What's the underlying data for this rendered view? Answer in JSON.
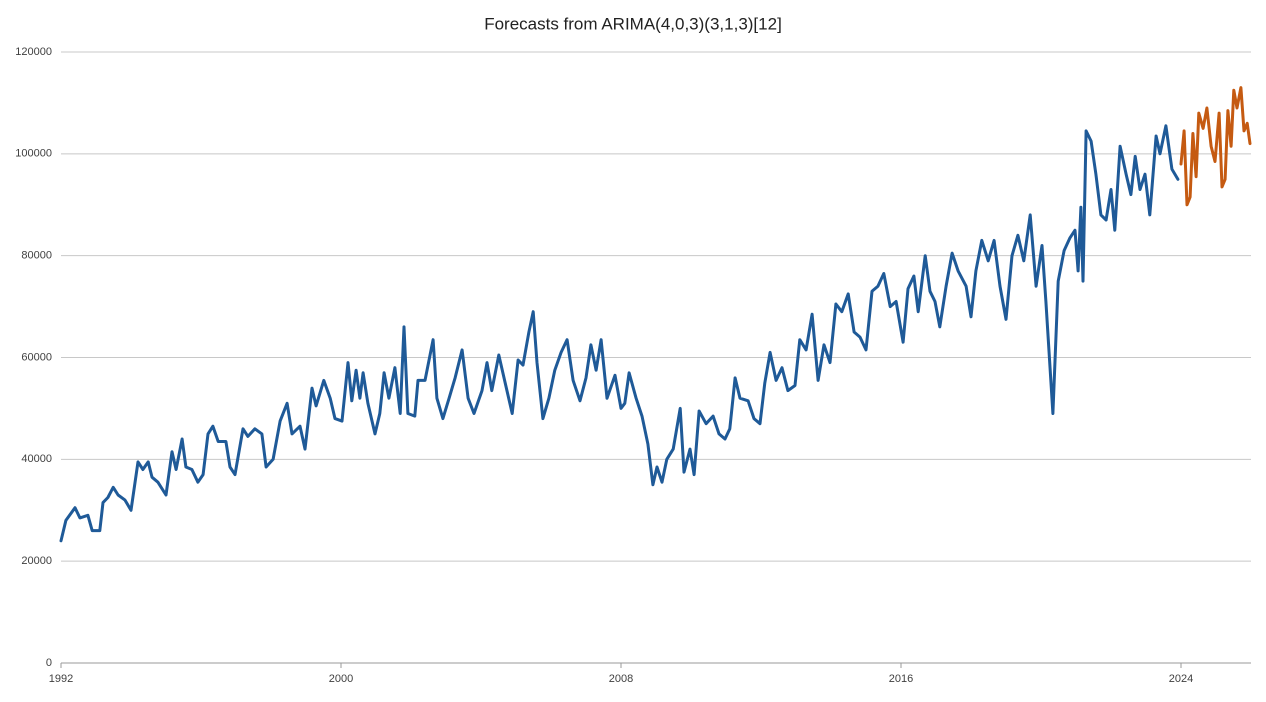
{
  "chart_data": {
    "type": "line",
    "title": "Forecasts from ARIMA(4,0,3)(3,1,3)[12]",
    "xlim": [
      1992,
      2026
    ],
    "xticks": [
      1992,
      2000,
      2008,
      2016,
      2024
    ],
    "ylim": [
      0,
      120000
    ],
    "yticks": [
      0,
      20000,
      40000,
      60000,
      80000,
      100000,
      120000
    ],
    "grid": true,
    "series": [
      {
        "color": "#1f5a98",
        "x": [
          1992.0,
          1992.14,
          1992.4,
          1992.54,
          1992.77,
          1992.89,
          1993.11,
          1993.2,
          1993.34,
          1993.49,
          1993.63,
          1993.83,
          1994.0,
          1994.2,
          1994.34,
          1994.49,
          1994.6,
          1994.77,
          1995.0,
          1995.17,
          1995.29,
          1995.46,
          1995.57,
          1995.74,
          1995.91,
          1996.06,
          1996.2,
          1996.34,
          1996.49,
          1996.71,
          1996.83,
          1996.97,
          1997.2,
          1997.34,
          1997.54,
          1997.74,
          1997.86,
          1998.06,
          1998.26,
          1998.46,
          1998.6,
          1998.83,
          1998.97,
          1999.17,
          1999.29,
          1999.51,
          1999.69,
          1999.83,
          2000.03,
          2000.2,
          2000.31,
          2000.43,
          2000.54,
          2000.63,
          2000.77,
          2000.97,
          2001.11,
          2001.23,
          2001.37,
          2001.54,
          2001.69,
          2001.8,
          2001.91,
          2002.11,
          2002.2,
          2002.4,
          2002.63,
          2002.74,
          2002.91,
          2003.09,
          2003.26,
          2003.46,
          2003.63,
          2003.8,
          2004.03,
          2004.17,
          2004.31,
          2004.51,
          2004.69,
          2004.89,
          2005.06,
          2005.2,
          2005.37,
          2005.49,
          2005.6,
          2005.77,
          2005.94,
          2006.11,
          2006.29,
          2006.46,
          2006.63,
          2006.83,
          2007.0,
          2007.14,
          2007.29,
          2007.43,
          2007.6,
          2007.83,
          2008.0,
          2008.11,
          2008.23,
          2008.43,
          2008.6,
          2008.77,
          2008.91,
          2009.03,
          2009.17,
          2009.31,
          2009.49,
          2009.69,
          2009.8,
          2009.97,
          2010.09,
          2010.23,
          2010.43,
          2010.63,
          2010.8,
          2010.97,
          2011.11,
          2011.26,
          2011.4,
          2011.63,
          2011.8,
          2011.97,
          2012.11,
          2012.26,
          2012.43,
          2012.6,
          2012.77,
          2012.97,
          2013.11,
          2013.29,
          2013.46,
          2013.63,
          2013.8,
          2013.97,
          2014.14,
          2014.31,
          2014.49,
          2014.66,
          2014.83,
          2015.0,
          2015.17,
          2015.34,
          2015.51,
          2015.69,
          2015.86,
          2016.06,
          2016.2,
          2016.37,
          2016.49,
          2016.69,
          2016.83,
          2016.97,
          2017.11,
          2017.29,
          2017.46,
          2017.63,
          2017.86,
          2018.0,
          2018.14,
          2018.31,
          2018.49,
          2018.66,
          2018.83,
          2019.0,
          2019.17,
          2019.34,
          2019.51,
          2019.69,
          2019.86,
          2020.03,
          2020.14,
          2020.34,
          2020.49,
          2020.66,
          2020.83,
          2020.97,
          2021.06,
          2021.14,
          2021.2,
          2021.29,
          2021.43,
          2021.57,
          2021.71,
          2021.86,
          2022.0,
          2022.11,
          2022.26,
          2022.43,
          2022.57,
          2022.69,
          2022.83,
          2022.97,
          2023.11,
          2023.29,
          2023.4,
          2023.57,
          2023.74,
          2023.91
        ],
        "values": [
          24000,
          28000,
          30500,
          28500,
          29000,
          26000,
          26000,
          31500,
          32500,
          34500,
          33000,
          32000,
          30000,
          39500,
          38000,
          39500,
          36500,
          35500,
          33000,
          41500,
          38000,
          44000,
          38500,
          38000,
          35500,
          37000,
          45000,
          46500,
          43500,
          43500,
          38500,
          37000,
          46000,
          44500,
          46000,
          45000,
          38500,
          40000,
          47500,
          51000,
          45000,
          46500,
          42000,
          54000,
          50500,
          55500,
          52000,
          48000,
          47500,
          59000,
          51500,
          57500,
          52000,
          57000,
          51000,
          45000,
          49000,
          57000,
          52000,
          58000,
          49000,
          66000,
          49000,
          48500,
          55500,
          55500,
          63500,
          52000,
          48000,
          52000,
          56000,
          61500,
          52000,
          49000,
          53500,
          59000,
          53500,
          60500,
          55000,
          49000,
          59500,
          58500,
          65000,
          69000,
          59000,
          48000,
          52000,
          57500,
          61000,
          63500,
          55500,
          51500,
          56000,
          62500,
          57500,
          63500,
          52000,
          56500,
          50000,
          51000,
          57000,
          52000,
          48500,
          43000,
          35000,
          38500,
          35500,
          40000,
          42000,
          50000,
          37500,
          42000,
          37000,
          49500,
          47000,
          48500,
          45000,
          44000,
          46000,
          56000,
          52000,
          51500,
          48000,
          47000,
          55000,
          61000,
          55500,
          58000,
          53500,
          54500,
          63500,
          61500,
          68500,
          55500,
          62500,
          59000,
          70500,
          69000,
          72500,
          65000,
          64000,
          61500,
          73000,
          74000,
          76500,
          70000,
          71000,
          63000,
          73500,
          76000,
          69000,
          80000,
          73000,
          71000,
          66000,
          74000,
          80500,
          77000,
          74000,
          68000,
          77000,
          83000,
          79000,
          83000,
          74000,
          67500,
          80000,
          84000,
          79000,
          88000,
          74000,
          82000,
          71000,
          49000,
          75000,
          81000,
          83500,
          85000,
          77000,
          89500,
          75000,
          104500,
          102500,
          96000,
          88000,
          87000,
          93000,
          85000,
          101500,
          96000,
          92000,
          99500,
          93000,
          96000,
          88000,
          103500,
          100000,
          105500,
          97000,
          95000
        ]
      },
      {
        "color": "#c55a11",
        "x": [
          2024.0,
          2024.09,
          2024.17,
          2024.26,
          2024.34,
          2024.43,
          2024.51,
          2024.63,
          2024.74,
          2024.86,
          2024.97,
          2025.09,
          2025.17,
          2025.26,
          2025.34,
          2025.43,
          2025.51,
          2025.6,
          2025.71,
          2025.8,
          2025.89,
          2025.97
        ],
        "values": [
          98000,
          104500,
          90000,
          91500,
          104000,
          95500,
          108000,
          105000,
          109000,
          101500,
          98500,
          108000,
          93500,
          95000,
          108500,
          101500,
          112500,
          109000,
          113000,
          104500,
          106000,
          102000
        ]
      }
    ]
  }
}
